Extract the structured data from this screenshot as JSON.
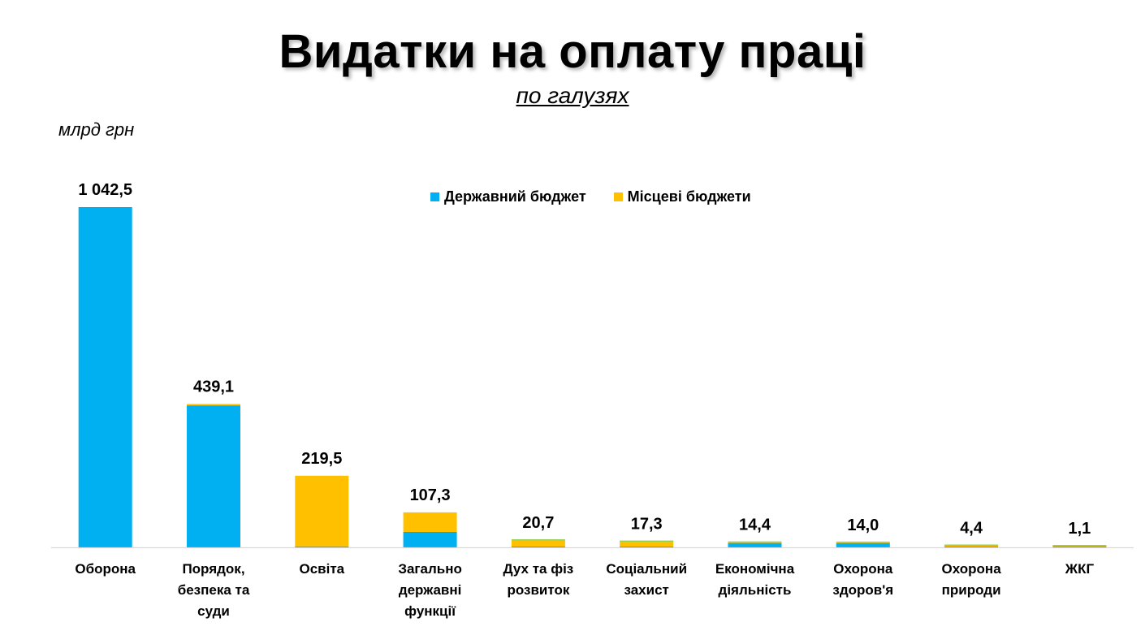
{
  "chart_data": {
    "type": "bar",
    "stacked": true,
    "title": "Видатки на оплату праці",
    "subtitle": "по галузях",
    "ylabel": "млрд грн",
    "ylim": [
      0,
      1042.5
    ],
    "grid": false,
    "legend_placement": "top-center",
    "colors": {
      "state": "#00B0F0",
      "local": "#FFC000",
      "other": "#92D050",
      "axis": "#d9d9d9"
    },
    "categories": [
      [
        "Оборона"
      ],
      [
        "Порядок,",
        "безпека та",
        "суди"
      ],
      [
        "Освіта"
      ],
      [
        "Загально",
        "державні",
        "функції"
      ],
      [
        "Дух та фіз",
        "розвиток"
      ],
      [
        "Соціальний",
        "захист"
      ],
      [
        "Економічна",
        "діяльність"
      ],
      [
        "Охорона",
        "здоров'я"
      ],
      [
        "Охорона",
        "природи"
      ],
      [
        "ЖКГ"
      ]
    ],
    "series": [
      {
        "name": "Державний бюджет",
        "color": "#00B0F0",
        "values": [
          1042.5,
          435.0,
          3.0,
          47.3,
          1.0,
          1.3,
          13.2,
          12.6,
          0.6,
          0.1
        ]
      },
      {
        "name": "Місцеві бюджети",
        "color": "#FFC000",
        "values": [
          0.0,
          4.1,
          216.5,
          60.0,
          19.7,
          16.0,
          1.2,
          1.4,
          3.8,
          1.0
        ]
      }
    ],
    "data_labels": [
      "1 042,5",
      "439,1",
      "219,5",
      "107,3",
      "20,7",
      "17,3",
      "14,4",
      "14,0",
      "4,4",
      "1,1"
    ]
  }
}
